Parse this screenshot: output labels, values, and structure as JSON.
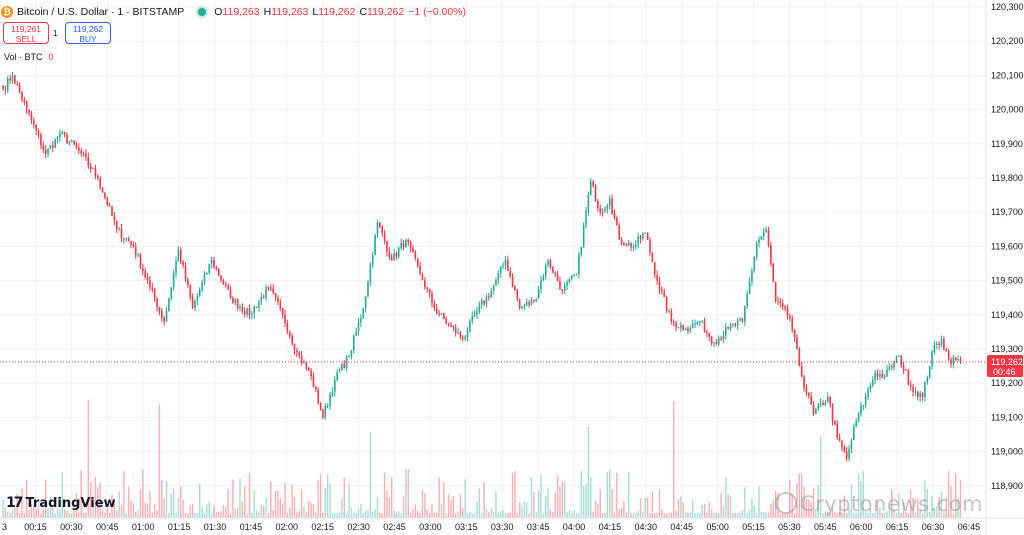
{
  "header": {
    "symbol": "Bitcoin / U.S. Dollar · 1 · BITSTAMP",
    "btc_glyph": "₿",
    "open_label": "O",
    "open": "119,263",
    "high_label": "H",
    "high": "119,263",
    "low_label": "L",
    "low": "119,262",
    "close_label": "C",
    "close": "119,262",
    "change": "−1 (−0.00%)"
  },
  "trade": {
    "sell_price": "119,261",
    "sell_label": "SELL",
    "spread": "1",
    "buy_price": "119,262",
    "buy_label": "BUY"
  },
  "volume_legend": {
    "label": "Vol · BTC",
    "value": "0"
  },
  "branding": {
    "logo_mark": "17",
    "logo_text": "TradingView"
  },
  "watermark": "Cryptonews.com",
  "colors": {
    "up": "#22ab94",
    "down": "#f23645",
    "grid": "#f0f3fa",
    "axis_text": "#131722"
  },
  "chart_data": {
    "type": "candlestick",
    "title": "Bitcoin / U.S. Dollar · 1 · BITSTAMP",
    "ylim": [
      118850,
      120300
    ],
    "y_ticks": [
      120300,
      120200,
      120100,
      120000,
      119900,
      119800,
      119700,
      119600,
      119500,
      119400,
      119300,
      119200,
      119100,
      119000,
      118900
    ],
    "y_tick_labels": [
      "120,300",
      "120,200",
      "120,100",
      "120,000",
      "119,900",
      "119,800",
      "119,700",
      "119,600",
      "119,500",
      "119,400",
      "119,300",
      "119,200",
      "119,100",
      "119,000",
      "118,900"
    ],
    "x_tick_labels": [
      "00:15",
      "00:30",
      "00:45",
      "01:00",
      "01:15",
      "01:30",
      "01:45",
      "02:00",
      "02:15",
      "02:30",
      "02:45",
      "03:00",
      "03:15",
      "03:30",
      "03:45",
      "04:00",
      "04:15",
      "04:30",
      "04:45",
      "05:00",
      "05:15",
      "05:30",
      "05:45",
      "06:00",
      "06:15",
      "06:30",
      "06:45"
    ],
    "x_edge_label": "3",
    "last_price": 119262,
    "last_price_label": "119,262",
    "countdown": "00:46",
    "key_points": [
      [
        0,
        120060
      ],
      [
        4,
        120100
      ],
      [
        10,
        120000
      ],
      [
        18,
        119870
      ],
      [
        24,
        119930
      ],
      [
        32,
        119880
      ],
      [
        40,
        119800
      ],
      [
        48,
        119650
      ],
      [
        55,
        119600
      ],
      [
        62,
        119480
      ],
      [
        68,
        119380
      ],
      [
        74,
        119590
      ],
      [
        80,
        119420
      ],
      [
        88,
        119560
      ],
      [
        96,
        119450
      ],
      [
        104,
        119400
      ],
      [
        112,
        119480
      ],
      [
        118,
        119400
      ],
      [
        124,
        119290
      ],
      [
        130,
        119220
      ],
      [
        135,
        119100
      ],
      [
        140,
        119210
      ],
      [
        146,
        119280
      ],
      [
        152,
        119420
      ],
      [
        158,
        119670
      ],
      [
        164,
        119560
      ],
      [
        170,
        119620
      ],
      [
        176,
        119520
      ],
      [
        182,
        119420
      ],
      [
        188,
        119370
      ],
      [
        194,
        119330
      ],
      [
        200,
        119410
      ],
      [
        206,
        119470
      ],
      [
        212,
        119560
      ],
      [
        218,
        119420
      ],
      [
        224,
        119440
      ],
      [
        230,
        119560
      ],
      [
        236,
        119470
      ],
      [
        242,
        119520
      ],
      [
        248,
        119790
      ],
      [
        252,
        119700
      ],
      [
        256,
        119740
      ],
      [
        260,
        119620
      ],
      [
        266,
        119600
      ],
      [
        271,
        119640
      ],
      [
        276,
        119500
      ],
      [
        282,
        119380
      ],
      [
        288,
        119360
      ],
      [
        294,
        119380
      ],
      [
        300,
        119320
      ],
      [
        306,
        119360
      ],
      [
        312,
        119380
      ],
      [
        318,
        119610
      ],
      [
        322,
        119650
      ],
      [
        326,
        119440
      ],
      [
        332,
        119390
      ],
      [
        337,
        119220
      ],
      [
        342,
        119110
      ],
      [
        348,
        119160
      ],
      [
        352,
        119040
      ],
      [
        356,
        118980
      ],
      [
        360,
        119090
      ],
      [
        364,
        119160
      ],
      [
        368,
        119230
      ],
      [
        372,
        119220
      ],
      [
        378,
        119280
      ],
      [
        383,
        119190
      ],
      [
        388,
        119160
      ],
      [
        392,
        119290
      ],
      [
        396,
        119330
      ],
      [
        399,
        119270
      ],
      [
        404,
        119262
      ]
    ],
    "volume_peaks": [
      [
        36,
        0.74
      ],
      [
        66,
        0.71
      ],
      [
        155,
        0.54
      ],
      [
        283,
        0.73
      ],
      [
        247,
        0.57
      ],
      [
        345,
        0.51
      ]
    ]
  }
}
